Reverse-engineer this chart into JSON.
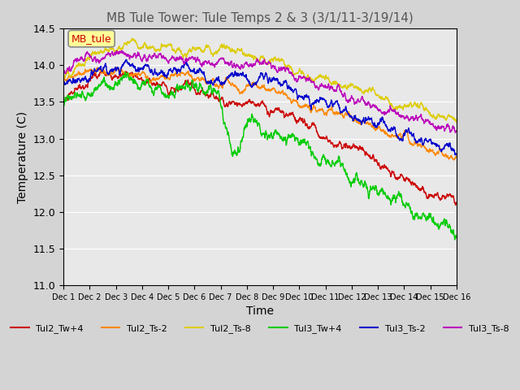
{
  "title": "MB Tule Tower: Tule Temps 2 & 3 (3/1/11-3/19/14)",
  "xlabel": "Time",
  "ylabel": "Temperature (C)",
  "ylim": [
    11.0,
    14.5
  ],
  "yticks": [
    11.0,
    11.5,
    12.0,
    12.5,
    13.0,
    13.5,
    14.0,
    14.5
  ],
  "xlim": [
    0,
    15
  ],
  "xtick_labels": [
    "Dec 1",
    "Dec 2",
    "Dec 3",
    "Dec 4",
    "Dec 5",
    "Dec 6",
    "Dec 7",
    "Dec 8",
    "Dec 9",
    "Dec 10",
    "Dec 11",
    "Dec 12",
    "Dec 13",
    "Dec 14",
    "Dec 15",
    "Dec 16"
  ],
  "legend_label": "MB_tule",
  "fig_facecolor": "#d4d4d4",
  "ax_facecolor": "#e8e8e8",
  "series": {
    "Tul2_Tw+4": {
      "color": "#cc0000",
      "lw": 1.0
    },
    "Tul2_Ts-2": {
      "color": "#ff8800",
      "lw": 1.0
    },
    "Tul2_Ts-8": {
      "color": "#ddcc00",
      "lw": 1.0
    },
    "Tul3_Tw+4": {
      "color": "#00cc00",
      "lw": 1.0
    },
    "Tul3_Ts-2": {
      "color": "#0000cc",
      "lw": 1.0
    },
    "Tul3_Ts-8": {
      "color": "#bb00bb",
      "lw": 1.0
    }
  }
}
